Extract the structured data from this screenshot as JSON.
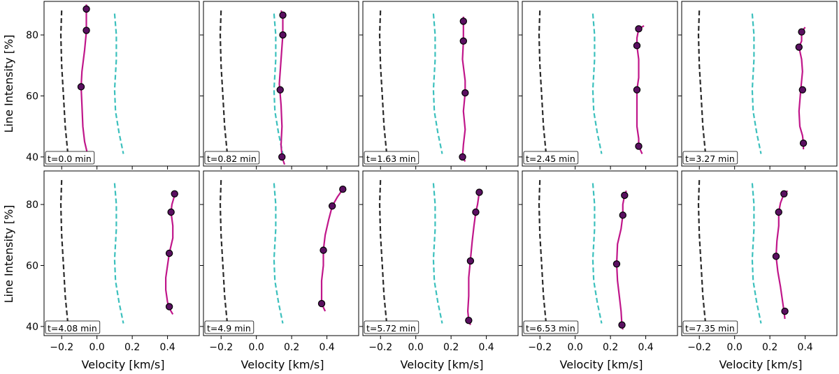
{
  "figure": {
    "xlabel": "Velocity [km/s]",
    "ylabel": "Line Intensity [%]"
  },
  "chart_data": {
    "type": "line",
    "title": "",
    "xlabel": "Velocity [km/s]",
    "ylabel": "Line Intensity [%]",
    "xlim": [
      -0.3,
      0.58
    ],
    "ylim": [
      37,
      91
    ],
    "xticks": [
      -0.2,
      0.0,
      0.2,
      0.4
    ],
    "yticks": [
      40,
      60,
      80
    ],
    "grid": false,
    "layout": "2 rows x 5 columns, shared axes",
    "colors": {
      "reference_left": "#2b2b2b",
      "reference_right": "#3cc0bd",
      "bisector": "#c0168a",
      "marker_fill": "#5a1060",
      "marker_edge": "#000000"
    },
    "reference_left": [
      [
        -0.2,
        88
      ],
      [
        -0.205,
        80
      ],
      [
        -0.2,
        70
      ],
      [
        -0.19,
        60
      ],
      [
        -0.18,
        50
      ],
      [
        -0.165,
        41
      ]
    ],
    "reference_right": [
      [
        0.1,
        87
      ],
      [
        0.11,
        80
      ],
      [
        0.11,
        72
      ],
      [
        0.1,
        62
      ],
      [
        0.105,
        55
      ],
      [
        0.125,
        48
      ],
      [
        0.15,
        41
      ]
    ],
    "panels": [
      {
        "time_label": "t=0.0 min",
        "line": [
          [
            -0.06,
            90
          ],
          [
            -0.06,
            85
          ],
          [
            -0.06,
            81
          ],
          [
            -0.07,
            75
          ],
          [
            -0.085,
            68
          ],
          [
            -0.09,
            63
          ],
          [
            -0.085,
            57
          ],
          [
            -0.08,
            50
          ],
          [
            -0.07,
            45
          ],
          [
            -0.05,
            40
          ]
        ],
        "points": [
          [
            -0.06,
            88.5
          ],
          [
            -0.06,
            81.5
          ],
          [
            -0.09,
            63
          ],
          [
            -0.05,
            39.5
          ]
        ]
      },
      {
        "time_label": "t=0.82 min",
        "line": [
          [
            0.14,
            88
          ],
          [
            0.15,
            86.5
          ],
          [
            0.15,
            80
          ],
          [
            0.14,
            72
          ],
          [
            0.13,
            64
          ],
          [
            0.14,
            57
          ],
          [
            0.145,
            50
          ],
          [
            0.14,
            44
          ],
          [
            0.145,
            40
          ],
          [
            0.16,
            37.5
          ]
        ],
        "points": [
          [
            0.15,
            86.5
          ],
          [
            0.15,
            80
          ],
          [
            0.135,
            62
          ],
          [
            0.145,
            40
          ]
        ]
      },
      {
        "time_label": "t=1.63 min",
        "line": [
          [
            0.27,
            86
          ],
          [
            0.27,
            84.5
          ],
          [
            0.27,
            78
          ],
          [
            0.265,
            72
          ],
          [
            0.28,
            65
          ],
          [
            0.28,
            61
          ],
          [
            0.27,
            55
          ],
          [
            0.28,
            49
          ],
          [
            0.27,
            44
          ],
          [
            0.265,
            40
          ],
          [
            0.28,
            38.5
          ]
        ],
        "points": [
          [
            0.27,
            84.5
          ],
          [
            0.27,
            78
          ],
          [
            0.28,
            61
          ],
          [
            0.265,
            40
          ]
        ]
      },
      {
        "time_label": "t=2.45 min",
        "line": [
          [
            0.39,
            83
          ],
          [
            0.36,
            82
          ],
          [
            0.35,
            79
          ],
          [
            0.35,
            76.5
          ],
          [
            0.36,
            72
          ],
          [
            0.36,
            66
          ],
          [
            0.35,
            62
          ],
          [
            0.35,
            56
          ],
          [
            0.35,
            50
          ],
          [
            0.36,
            46
          ],
          [
            0.36,
            43.5
          ],
          [
            0.38,
            41
          ]
        ],
        "points": [
          [
            0.36,
            82
          ],
          [
            0.35,
            76.5
          ],
          [
            0.35,
            62
          ],
          [
            0.36,
            43.5
          ]
        ]
      },
      {
        "time_label": "t=3.27 min",
        "line": [
          [
            0.4,
            82.5
          ],
          [
            0.38,
            81
          ],
          [
            0.38,
            78
          ],
          [
            0.365,
            76
          ],
          [
            0.38,
            72
          ],
          [
            0.385,
            68
          ],
          [
            0.375,
            62
          ],
          [
            0.365,
            55
          ],
          [
            0.37,
            50
          ],
          [
            0.385,
            47
          ],
          [
            0.39,
            44.5
          ],
          [
            0.39,
            42.5
          ]
        ],
        "points": [
          [
            0.38,
            81
          ],
          [
            0.365,
            76
          ],
          [
            0.385,
            62
          ],
          [
            0.39,
            44.5
          ]
        ]
      },
      {
        "time_label": "t=4.08 min",
        "line": [
          [
            0.44,
            84
          ],
          [
            0.44,
            83
          ],
          [
            0.425,
            80
          ],
          [
            0.42,
            77.5
          ],
          [
            0.43,
            73
          ],
          [
            0.43,
            69
          ],
          [
            0.41,
            64
          ],
          [
            0.4,
            60
          ],
          [
            0.39,
            56
          ],
          [
            0.39,
            52
          ],
          [
            0.4,
            48
          ],
          [
            0.41,
            46
          ],
          [
            0.43,
            44
          ]
        ],
        "points": [
          [
            0.44,
            83.5
          ],
          [
            0.42,
            77.5
          ],
          [
            0.41,
            64
          ],
          [
            0.41,
            46.5
          ]
        ]
      },
      {
        "time_label": "t=4.9 min",
        "line": [
          [
            0.5,
            86
          ],
          [
            0.49,
            85
          ],
          [
            0.46,
            82.5
          ],
          [
            0.43,
            79.5
          ],
          [
            0.41,
            75
          ],
          [
            0.39,
            70
          ],
          [
            0.38,
            65
          ],
          [
            0.38,
            60
          ],
          [
            0.37,
            55
          ],
          [
            0.37,
            50
          ],
          [
            0.37,
            47.5
          ],
          [
            0.39,
            45
          ]
        ],
        "points": [
          [
            0.49,
            85
          ],
          [
            0.43,
            79.5
          ],
          [
            0.38,
            65
          ],
          [
            0.37,
            47.5
          ]
        ]
      },
      {
        "time_label": "t=5.72 min",
        "line": [
          [
            0.35,
            85
          ],
          [
            0.36,
            84
          ],
          [
            0.35,
            80
          ],
          [
            0.34,
            77.5
          ],
          [
            0.33,
            73
          ],
          [
            0.32,
            68
          ],
          [
            0.31,
            62
          ],
          [
            0.3,
            56
          ],
          [
            0.3,
            50
          ],
          [
            0.295,
            45
          ],
          [
            0.3,
            42
          ],
          [
            0.31,
            40.5
          ]
        ],
        "points": [
          [
            0.36,
            84
          ],
          [
            0.34,
            77.5
          ],
          [
            0.31,
            61.5
          ],
          [
            0.3,
            42
          ]
        ]
      },
      {
        "time_label": "t=6.53 min",
        "line": [
          [
            0.29,
            84.5
          ],
          [
            0.28,
            83
          ],
          [
            0.27,
            80
          ],
          [
            0.27,
            76.5
          ],
          [
            0.26,
            72
          ],
          [
            0.24,
            67
          ],
          [
            0.235,
            60.5
          ],
          [
            0.24,
            55
          ],
          [
            0.25,
            50
          ],
          [
            0.26,
            45
          ],
          [
            0.265,
            40.5
          ],
          [
            0.27,
            39
          ]
        ],
        "points": [
          [
            0.28,
            83
          ],
          [
            0.27,
            76.5
          ],
          [
            0.235,
            60.5
          ],
          [
            0.265,
            40.5
          ]
        ]
      },
      {
        "time_label": "t=7.35 min",
        "line": [
          [
            0.3,
            84.5
          ],
          [
            0.28,
            83.5
          ],
          [
            0.26,
            80.5
          ],
          [
            0.25,
            77.5
          ],
          [
            0.25,
            73
          ],
          [
            0.24,
            68
          ],
          [
            0.235,
            63
          ],
          [
            0.245,
            58
          ],
          [
            0.26,
            53
          ],
          [
            0.27,
            49
          ],
          [
            0.28,
            45
          ],
          [
            0.285,
            42.5
          ]
        ],
        "points": [
          [
            0.28,
            83.5
          ],
          [
            0.25,
            77.5
          ],
          [
            0.235,
            63
          ],
          [
            0.285,
            45
          ]
        ]
      }
    ]
  }
}
